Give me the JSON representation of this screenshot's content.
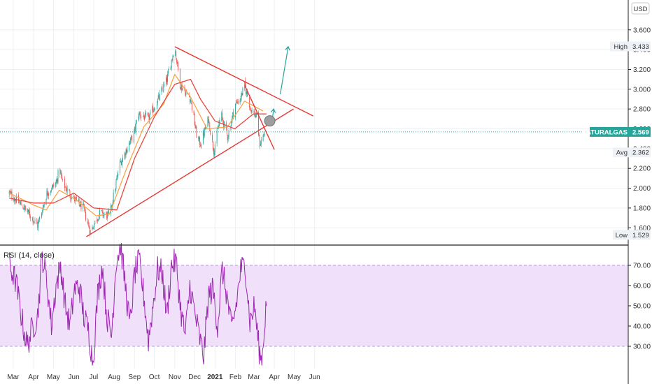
{
  "currency": "USD",
  "symbol_tag": {
    "label": "NATURALGAS",
    "value": "2.569"
  },
  "high_tag": {
    "label": "High",
    "value": "3.433"
  },
  "avg_tag": {
    "label": "Avg",
    "value": "2.362"
  },
  "low_tag": {
    "label": "Low",
    "value": "1.529"
  },
  "rsi_title": "RSI (14, close)",
  "colors": {
    "candle_up": "#26a69a",
    "candle_down": "#ef5350",
    "ma_fast": "#f7a54a",
    "ma_slow": "#e8463c",
    "trendline": "#e53935",
    "arrow": "#26a69a",
    "rsi_line": "#9c27b0",
    "rsi_band": "#f0e0fa",
    "symbol_tag_bg": "#26a69a"
  },
  "chart_data": [
    {
      "type": "candlestick",
      "title": "",
      "x_ticks": [
        "Mar",
        "Apr",
        "May",
        "Jun",
        "Jul",
        "Aug",
        "Sep",
        "Oct",
        "Nov",
        "Dec",
        "2021",
        "Feb",
        "Mar",
        "Apr",
        "May",
        "Jun"
      ],
      "y_ticks": [
        "1.600",
        "1.800",
        "2.000",
        "2.200",
        "2.400",
        "2.600",
        "2.800",
        "3.000",
        "3.200",
        "3.400",
        "3.600"
      ],
      "ylim": [
        1.5,
        3.85
      ],
      "grid": true,
      "price_path": [
        [
          "2020-02-24",
          1.95
        ],
        [
          "2020-03-15",
          1.82
        ],
        [
          "2020-03-30",
          1.7
        ],
        [
          "2020-04-07",
          1.62
        ],
        [
          "2020-04-21",
          1.95
        ],
        [
          "2020-05-05",
          2.05
        ],
        [
          "2020-05-10",
          2.2
        ],
        [
          "2020-05-15",
          2.05
        ],
        [
          "2020-05-28",
          1.92
        ],
        [
          "2020-06-15",
          1.8
        ],
        [
          "2020-06-26",
          1.56
        ],
        [
          "2020-07-10",
          1.75
        ],
        [
          "2020-07-25",
          1.72
        ],
        [
          "2020-08-10",
          2.25
        ],
        [
          "2020-08-31",
          2.55
        ],
        [
          "2020-09-07",
          2.75
        ],
        [
          "2020-09-22",
          2.7
        ],
        [
          "2020-10-07",
          2.9
        ],
        [
          "2020-10-20",
          3.1
        ],
        [
          "2020-11-01",
          3.43
        ],
        [
          "2020-11-09",
          3.05
        ],
        [
          "2020-11-25",
          2.9
        ],
        [
          "2020-12-05",
          2.5
        ],
        [
          "2020-12-10",
          2.45
        ],
        [
          "2020-12-22",
          2.7
        ],
        [
          "2020-12-30",
          2.38
        ],
        [
          "2021-01-10",
          2.75
        ],
        [
          "2021-01-20",
          2.52
        ],
        [
          "2021-02-01",
          2.85
        ],
        [
          "2021-02-08",
          2.9
        ],
        [
          "2021-02-15",
          3.04
        ],
        [
          "2021-02-24",
          2.8
        ],
        [
          "2021-03-05",
          2.72
        ],
        [
          "2021-03-10",
          2.45
        ],
        [
          "2021-03-17",
          2.56
        ]
      ],
      "moving_averages": [
        {
          "points": [
            [
              "2020-02-24",
              1.95
            ],
            [
              "2020-04-01",
              1.83
            ],
            [
              "2020-04-20",
              1.78
            ],
            [
              "2020-05-10",
              1.98
            ],
            [
              "2020-06-05",
              1.88
            ],
            [
              "2020-07-05",
              1.72
            ],
            [
              "2020-07-25",
              1.74
            ],
            [
              "2020-08-20",
              2.2
            ],
            [
              "2020-09-15",
              2.62
            ],
            [
              "2020-10-15",
              2.85
            ],
            [
              "2020-11-01",
              3.15
            ],
            [
              "2020-11-25",
              2.92
            ],
            [
              "2020-12-20",
              2.6
            ],
            [
              "2021-01-20",
              2.62
            ],
            [
              "2021-02-15",
              2.88
            ],
            [
              "2021-03-15",
              2.78
            ]
          ]
        },
        {
          "points": [
            [
              "2020-02-24",
              1.9
            ],
            [
              "2020-04-01",
              1.85
            ],
            [
              "2020-05-01",
              1.85
            ],
            [
              "2020-06-01",
              1.95
            ],
            [
              "2020-07-01",
              1.8
            ],
            [
              "2020-08-05",
              1.78
            ],
            [
              "2020-09-01",
              2.3
            ],
            [
              "2020-10-01",
              2.72
            ],
            [
              "2020-11-01",
              3.05
            ],
            [
              "2020-11-25",
              3.1
            ],
            [
              "2020-12-10",
              2.9
            ],
            [
              "2021-01-01",
              2.68
            ],
            [
              "2021-01-31",
              2.6
            ],
            [
              "2021-02-28",
              2.75
            ],
            [
              "2021-03-20",
              2.75
            ]
          ]
        }
      ],
      "trendlines": [
        {
          "from": [
            "2020-06-20",
            1.51
          ],
          "to": [
            "2021-04-30",
            2.8
          ]
        },
        {
          "from": [
            "2020-11-01",
            3.43
          ],
          "to": [
            "2021-05-30",
            2.73
          ]
        },
        {
          "from": [
            "2021-02-15",
            3.04
          ],
          "to": [
            "2021-04-01",
            2.39
          ]
        }
      ],
      "projections": [
        {
          "from": [
            "2021-03-28",
            2.66
          ],
          "to": [
            "2021-03-31",
            2.8
          ]
        },
        {
          "from": [
            "2021-04-10",
            2.95
          ],
          "to": [
            "2021-04-22",
            3.43
          ]
        }
      ],
      "marker": [
        "2021-03-25",
        2.68
      ],
      "last_price": 2.569,
      "high": 3.433,
      "avg": 2.362,
      "low": 1.529
    },
    {
      "type": "line",
      "title": "RSI (14, close)",
      "y_ticks": [
        "30.00",
        "40.00",
        "50.00",
        "60.00",
        "70.00"
      ],
      "ylim": [
        20,
        82
      ],
      "band": [
        30,
        70
      ],
      "anchors": [
        [
          "2020-02-24",
          70
        ],
        [
          "2020-03-05",
          62
        ],
        [
          "2020-03-15",
          42
        ],
        [
          "2020-03-22",
          30
        ],
        [
          "2020-03-29",
          38
        ],
        [
          "2020-04-07",
          45
        ],
        [
          "2020-04-14",
          75
        ],
        [
          "2020-04-21",
          62
        ],
        [
          "2020-04-28",
          40
        ],
        [
          "2020-05-05",
          60
        ],
        [
          "2020-05-12",
          70
        ],
        [
          "2020-05-19",
          50
        ],
        [
          "2020-05-26",
          40
        ],
        [
          "2020-06-02",
          58
        ],
        [
          "2020-06-09",
          60
        ],
        [
          "2020-06-16",
          45
        ],
        [
          "2020-06-23",
          38
        ],
        [
          "2020-06-30",
          22
        ],
        [
          "2020-07-07",
          55
        ],
        [
          "2020-07-14",
          70
        ],
        [
          "2020-07-21",
          45
        ],
        [
          "2020-07-28",
          35
        ],
        [
          "2020-08-04",
          72
        ],
        [
          "2020-08-11",
          80
        ],
        [
          "2020-08-18",
          60
        ],
        [
          "2020-08-25",
          40
        ],
        [
          "2020-09-01",
          66
        ],
        [
          "2020-09-08",
          72
        ],
        [
          "2020-09-15",
          55
        ],
        [
          "2020-09-22",
          33
        ],
        [
          "2020-09-29",
          50
        ],
        [
          "2020-10-06",
          68
        ],
        [
          "2020-10-13",
          66
        ],
        [
          "2020-10-20",
          45
        ],
        [
          "2020-10-27",
          70
        ],
        [
          "2020-11-03",
          72
        ],
        [
          "2020-11-10",
          48
        ],
        [
          "2020-11-17",
          35
        ],
        [
          "2020-11-24",
          60
        ],
        [
          "2020-12-01",
          47
        ],
        [
          "2020-12-08",
          35
        ],
        [
          "2020-12-15",
          25
        ],
        [
          "2020-12-22",
          55
        ],
        [
          "2020-12-29",
          58
        ],
        [
          "2021-01-05",
          40
        ],
        [
          "2021-01-12",
          68
        ],
        [
          "2021-01-19",
          55
        ],
        [
          "2021-01-26",
          38
        ],
        [
          "2021-02-02",
          50
        ],
        [
          "2021-02-09",
          68
        ],
        [
          "2021-02-16",
          70
        ],
        [
          "2021-02-23",
          42
        ],
        [
          "2021-03-02",
          50
        ],
        [
          "2021-03-09",
          28
        ],
        [
          "2021-03-13",
          22
        ],
        [
          "2021-03-17",
          40
        ],
        [
          "2021-03-20",
          53
        ]
      ]
    }
  ]
}
